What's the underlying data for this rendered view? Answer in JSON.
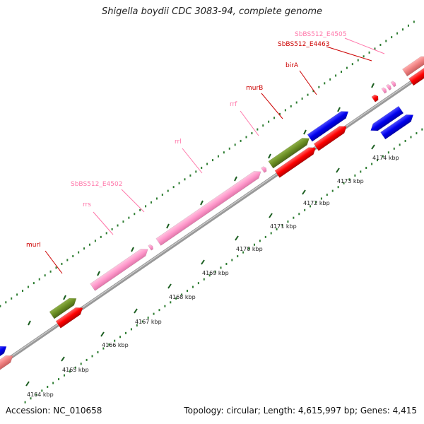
{
  "title": "Shigella boydii CDC 3083-94, complete genome",
  "accession": "Accession: NC_010658",
  "summary": "Topology: circular; Length: 4,615,997 bp; Genes: 4,415",
  "colors": {
    "backbone": "#888888",
    "dots": "#2e7d32",
    "red": "#ff0000",
    "pink": "#ff99cc",
    "olive": "#6b8e23",
    "blue": "#0000ee",
    "darkred_label": "#cc0000",
    "pink_label": "#ff77aa"
  },
  "scale_ticks": [
    {
      "label": "4164 kbp"
    },
    {
      "label": "4165 kbp"
    },
    {
      "label": "4166 kbp"
    },
    {
      "label": "4167 kbp"
    },
    {
      "label": "4168 kbp"
    },
    {
      "label": "4169 kbp"
    },
    {
      "label": "4170 kbp"
    },
    {
      "label": "4171 kbp"
    },
    {
      "label": "4172 kbp"
    },
    {
      "label": "4173 kbp"
    },
    {
      "label": "4174 kbp"
    }
  ],
  "gene_labels": [
    {
      "text": "murI",
      "color": "red"
    },
    {
      "text": "rrs",
      "color": "pink"
    },
    {
      "text": "SbBS512_E4502",
      "color": "pink"
    },
    {
      "text": "rrl",
      "color": "pink"
    },
    {
      "text": "rrf",
      "color": "pink"
    },
    {
      "text": "murB",
      "color": "red"
    },
    {
      "text": "birA",
      "color": "red"
    },
    {
      "text": "SbBS512_E4463",
      "color": "red"
    },
    {
      "text": "SbBS512_E4505",
      "color": "pink"
    }
  ]
}
